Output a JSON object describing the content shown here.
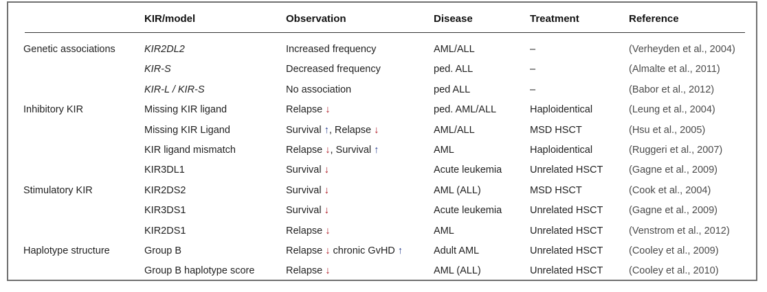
{
  "headers": [
    "KIR/model",
    "Observation",
    "Disease",
    "Treatment",
    "Reference"
  ],
  "rows": [
    {
      "category": "Genetic associations",
      "model": "KIR2DL2",
      "model_italic": true,
      "obs": "Increased frequency",
      "arrows": [],
      "disease": "AML/ALL",
      "treatment": "–",
      "reference": "(Verheyden et al., 2004)"
    },
    {
      "category": "",
      "model": "KIR-S",
      "model_italic": true,
      "obs": "Decreased frequency",
      "arrows": [],
      "disease": "ped. ALL",
      "treatment": "–",
      "reference": "(Almalte et al., 2011)"
    },
    {
      "category": "",
      "model": "KIR-L / KIR-S",
      "model_italic": true,
      "obs": "No association",
      "arrows": [],
      "disease": "ped ALL",
      "treatment": "–",
      "reference": "(Babor et al., 2012)"
    },
    {
      "category": "Inhibitory KIR",
      "model": "Missing KIR ligand",
      "model_italic": false,
      "obs": "Relapse",
      "arrows": [
        "down"
      ],
      "disease": "ped. AML/ALL",
      "treatment": "Haploidentical",
      "reference": "(Leung et al., 2004)"
    },
    {
      "category": "",
      "model": "Missing KIR Ligand",
      "model_italic": false,
      "obs": "Survival",
      "arrows": [
        "up"
      ],
      "obs2": ", Relapse",
      "arrows2": [
        "down"
      ],
      "disease": "AML/ALL",
      "treatment": "MSD HSCT",
      "reference": "(Hsu et al., 2005)"
    },
    {
      "category": "",
      "model": "KIR ligand mismatch",
      "model_italic": false,
      "obs": "Relapse",
      "arrows": [
        "down"
      ],
      "obs2": ", Survival",
      "arrows2": [
        "up"
      ],
      "disease": "AML",
      "treatment": "Haploidentical",
      "reference": "(Ruggeri et al., 2007)"
    },
    {
      "category": "",
      "model": "KIR3DL1",
      "model_italic": false,
      "obs": "Survival",
      "arrows": [
        "down"
      ],
      "disease": "Acute leukemia",
      "treatment": "Unrelated HSCT",
      "reference": "(Gagne et al., 2009)"
    },
    {
      "category": "Stimulatory KIR",
      "model": "KIR2DS2",
      "model_italic": false,
      "obs": "Survival",
      "arrows": [
        "down"
      ],
      "disease": "AML (ALL)",
      "treatment": "MSD HSCT",
      "reference": "(Cook et al., 2004)"
    },
    {
      "category": "",
      "model": "KIR3DS1",
      "model_italic": false,
      "obs": "Survival",
      "arrows": [
        "down"
      ],
      "disease": "Acute leukemia",
      "treatment": "Unrelated HSCT",
      "reference": "(Gagne et al., 2009)"
    },
    {
      "category": "",
      "model": "KIR2DS1",
      "model_italic": false,
      "obs": "Relapse",
      "arrows": [
        "down"
      ],
      "disease": "AML",
      "treatment": "Unrelated HSCT",
      "reference": "(Venstrom et al., 2012)"
    },
    {
      "category": "Haplotype structure",
      "model": "Group B",
      "model_italic": false,
      "obs": "Relapse",
      "arrows": [
        "down"
      ],
      "obs2": " chronic GvHD",
      "arrows2": [
        "up"
      ],
      "disease": "Adult AML",
      "treatment": "Unrelated HSCT",
      "reference": "(Cooley et al., 2009)"
    },
    {
      "category": "",
      "model": "Group B haplotype score",
      "model_italic": false,
      "obs": "Relapse",
      "arrows": [
        "down"
      ],
      "disease": "AML (ALL)",
      "treatment": "Unrelated HSCT",
      "reference": "(Cooley et al., 2010)"
    }
  ],
  "arrow_colors": {
    "down": "#b0202a",
    "up": "#2a3f8f"
  }
}
